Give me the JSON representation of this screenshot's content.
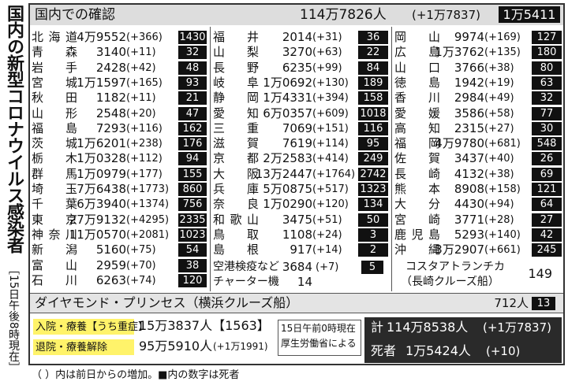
{
  "side_title": "国内の新型コロナウイルス感染者",
  "side_note": "［15日午後8時現在］",
  "header": {
    "title": "国内での確認",
    "total": "114万7826人",
    "increase": "(+1万7837)",
    "deaths": "1万5411"
  },
  "columns": [
    [
      [
        "北海道",
        "4万9552",
        "(+366)",
        1430
      ],
      [
        "青森",
        "3140",
        "(+11)",
        32
      ],
      [
        "岩手",
        "2428",
        "(+42)",
        48
      ],
      [
        "宮城",
        "1万1597",
        "(+165)",
        93
      ],
      [
        "秋田",
        "1182",
        "(+11)",
        21
      ],
      [
        "山形",
        "2548",
        "(+20)",
        47
      ],
      [
        "福島",
        "7293",
        "(+116)",
        162
      ],
      [
        "茨城",
        "1万6201",
        "(+238)",
        176
      ],
      [
        "栃木",
        "1万0328",
        "(+112)",
        94
      ],
      [
        "群馬",
        "1万0979",
        "(+177)",
        155
      ],
      [
        "埼玉",
        "7万6438",
        "(+1773)",
        860
      ],
      [
        "千葉",
        "6万3940",
        "(+1374)",
        756
      ],
      [
        "東京",
        "27万9132",
        "(+4295)",
        2335
      ],
      [
        "神奈川",
        "11万0570",
        "(+2081)",
        1023
      ],
      [
        "新潟",
        "5160",
        "(+75)",
        54
      ],
      [
        "富山",
        "2959",
        "(+70)",
        38
      ],
      [
        "石川",
        "6263",
        "(+74)",
        120
      ]
    ],
    [
      [
        "福井",
        "2014",
        "(+31)",
        36
      ],
      [
        "山梨",
        "3270",
        "(+63)",
        22
      ],
      [
        "長野",
        "6235",
        "(+99)",
        84
      ],
      [
        "岐阜",
        "1万0692",
        "(+130)",
        189
      ],
      [
        "静岡",
        "1万4331",
        "(+394)",
        158
      ],
      [
        "愛知",
        "6万0357",
        "(+609)",
        1018
      ],
      [
        "三重",
        "7069",
        "(+151)",
        116
      ],
      [
        "滋賀",
        "7619",
        "(+114)",
        95
      ],
      [
        "京都",
        "2万2583",
        "(+414)",
        249
      ],
      [
        "大阪",
        "13万2447",
        "(+1764)",
        2742
      ],
      [
        "兵庫",
        "5万0875",
        "(+517)",
        1323
      ],
      [
        "奈良",
        "1万0290",
        "(+120)",
        134
      ],
      [
        "和歌山",
        "3475",
        "(+51)",
        50
      ],
      [
        "鳥取",
        "1108",
        "(+24)",
        3
      ],
      [
        "島根",
        "917",
        "(+14)",
        2
      ]
    ],
    [
      [
        "岡山",
        "9974",
        "(+169)",
        127
      ],
      [
        "広島",
        "1万3762",
        "(+135)",
        180
      ],
      [
        "山口",
        "3766",
        "(+38)",
        80
      ],
      [
        "徳島",
        "1942",
        "(+19)",
        63
      ],
      [
        "香川",
        "2984",
        "(+49)",
        32
      ],
      [
        "愛媛",
        "3586",
        "(+58)",
        77
      ],
      [
        "高知",
        "2315",
        "(+27)",
        30
      ],
      [
        "福岡",
        "4万9780",
        "(+681)",
        548
      ],
      [
        "佐賀",
        "3437",
        "(+40)",
        26
      ],
      [
        "長崎",
        "4132",
        "(+38)",
        69
      ],
      [
        "熊本",
        "8908",
        "(+158)",
        121
      ],
      [
        "大分",
        "4430",
        "(+94)",
        64
      ],
      [
        "宮崎",
        "3771",
        "(+28)",
        27
      ],
      [
        "鹿児島",
        "5293",
        "(+140)",
        42
      ],
      [
        "沖縄",
        "3万2907",
        "(+661)",
        245
      ]
    ]
  ],
  "extras": {
    "airport": {
      "name": "空港検疫など",
      "cases": "3684",
      "increase": "(+7)",
      "deaths": 5
    },
    "charter": {
      "name": "チャーター機",
      "cases": "14"
    },
    "costa": {
      "name": "コスタアトランチカ",
      "sub": "（長崎クルーズ船）",
      "cases": "149"
    }
  },
  "diamond": {
    "name": "ダイヤモンド・プリンセス（横浜クルーズ船）",
    "cases": "712人",
    "deaths": 13
  },
  "summary": {
    "hospital_label": "入院・療養【うち重症】",
    "hospital": "15万3837人【1563】",
    "discharged_label": "退院・療養解除",
    "discharged": "95万5910人",
    "discharged_increase": "(+1万1991)",
    "source_lines": [
      "15日午前0時現在",
      "厚生労働省による"
    ],
    "total_label": "計",
    "total": "114万8538人",
    "total_increase": "(+1万7837)",
    "deaths_label": "死者",
    "deaths": "1万5424人",
    "deaths_increase": "(+10)"
  },
  "footnote": "（ ）内は前日からの増加。■内の数字は死者"
}
